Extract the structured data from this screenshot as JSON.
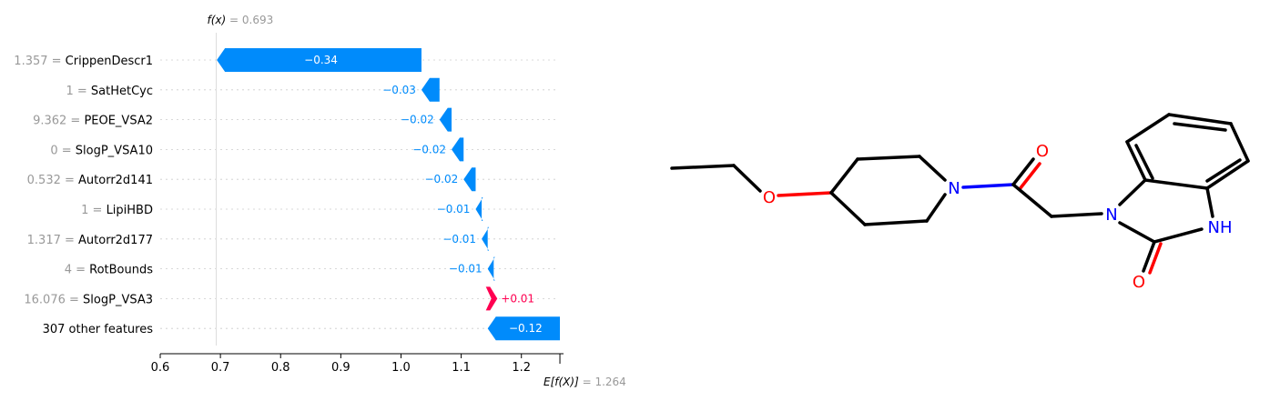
{
  "chart_data": {
    "type": "waterfall",
    "fx_label": "f(x)",
    "fx_value": "0.693",
    "base_label": "E[f(X)]",
    "base_value": "1.264",
    "base": 1.264,
    "final": 0.693,
    "xlim": [
      0.6,
      1.27
    ],
    "ticks": [
      0.6,
      0.7,
      0.8,
      0.9,
      1.0,
      1.1,
      1.2
    ],
    "tick_labels": [
      "0.6",
      "0.7",
      "0.8",
      "0.9",
      "1.0",
      "1.1",
      "1.2"
    ],
    "features": [
      {
        "value": "1.357",
        "name": "CrippenDescr1",
        "contribution": -0.34,
        "label": "−0.34"
      },
      {
        "value": "1",
        "name": "SatHetCyc",
        "contribution": -0.03,
        "label": "−0.03"
      },
      {
        "value": "9.362",
        "name": "PEOE_VSA2",
        "contribution": -0.02,
        "label": "−0.02"
      },
      {
        "value": "0",
        "name": "SlogP_VSA10",
        "contribution": -0.02,
        "label": "−0.02"
      },
      {
        "value": "0.532",
        "name": "Autorr2d141",
        "contribution": -0.02,
        "label": "−0.02"
      },
      {
        "value": "1",
        "name": "LipiHBD",
        "contribution": -0.01,
        "label": "−0.01"
      },
      {
        "value": "1.317",
        "name": "Autorr2d177",
        "contribution": -0.01,
        "label": "−0.01"
      },
      {
        "value": "4",
        "name": "RotBounds",
        "contribution": -0.01,
        "label": "−0.01"
      },
      {
        "value": "16.076",
        "name": "SlogP_VSA3",
        "contribution": 0.01,
        "label": "+0.01"
      },
      {
        "value": "",
        "name": "307 other features",
        "contribution": -0.12,
        "label": "−0.12"
      }
    ],
    "colors": {
      "negative": "#008bfb",
      "positive": "#ff0051",
      "axis": "#000000",
      "muted": "#999999"
    }
  },
  "molecule": {
    "atoms": [
      "O",
      "N",
      "O",
      "N",
      "NH",
      "O"
    ],
    "colors": {
      "bond": "#000000",
      "oxygen": "#ff0000",
      "nitrogen": "#0000ff"
    }
  }
}
